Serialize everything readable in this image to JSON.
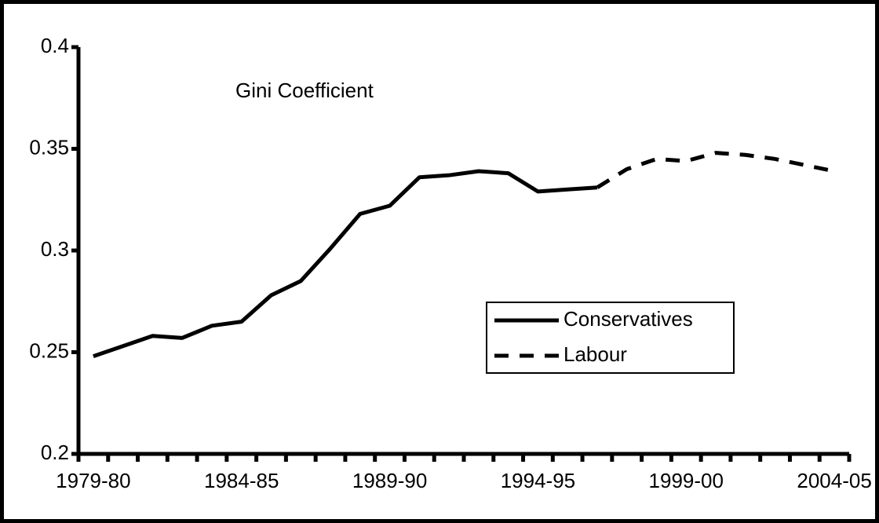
{
  "chart_data": {
    "type": "line",
    "title": "Gini Coefficient",
    "categories": [
      "1979-80",
      null,
      null,
      null,
      null,
      "1984-85",
      null,
      null,
      null,
      null,
      "1989-90",
      null,
      null,
      null,
      null,
      "1994-95",
      null,
      null,
      null,
      null,
      "1999-00",
      null,
      null,
      null,
      null,
      "2004-05"
    ],
    "series": [
      {
        "name": "Conservatives",
        "color": "#000000",
        "dashed": false,
        "values": [
          0.248,
          0.253,
          0.258,
          0.257,
          0.263,
          0.265,
          0.278,
          0.285,
          0.301,
          0.318,
          0.322,
          0.336,
          0.337,
          0.339,
          0.338,
          0.329,
          0.33,
          0.331,
          null,
          null,
          null,
          null,
          null,
          null,
          null,
          null
        ]
      },
      {
        "name": "Labour",
        "color": "#000000",
        "dashed": true,
        "values": [
          null,
          null,
          null,
          null,
          null,
          null,
          null,
          null,
          null,
          null,
          null,
          null,
          null,
          null,
          null,
          null,
          null,
          0.331,
          0.34,
          0.345,
          0.344,
          0.348,
          0.347,
          0.345,
          0.342,
          0.339
        ]
      }
    ],
    "ylim": [
      0.2,
      0.4
    ],
    "yticks": [
      0.2,
      0.25,
      0.3,
      0.35,
      0.4
    ],
    "grid": false
  }
}
